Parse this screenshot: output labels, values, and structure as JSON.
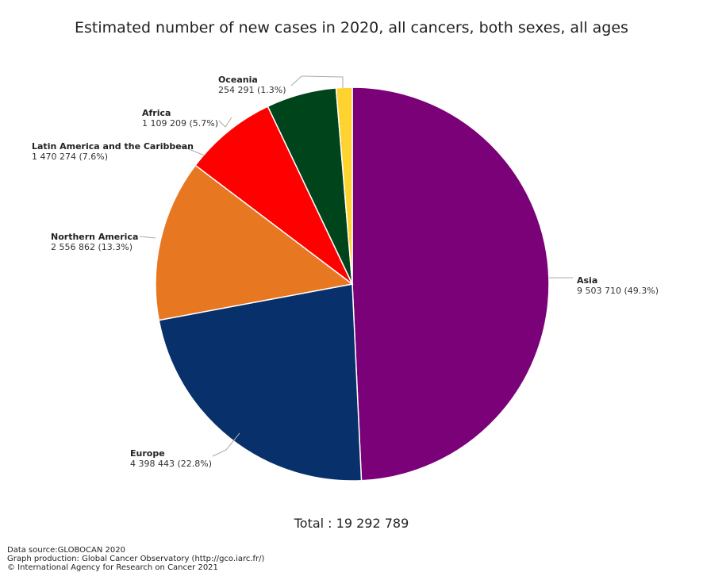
{
  "chart_data": {
    "type": "pie",
    "title": "Estimated number of new cases in 2020, all cancers, both sexes, all ages",
    "slices": [
      {
        "label": "Asia",
        "value": 9503710,
        "value_text": "9 503 710 (49.3%)",
        "color": "#7a0177"
      },
      {
        "label": "Europe",
        "value": 4398443,
        "value_text": "4 398 443 (22.8%)",
        "color": "#08306b"
      },
      {
        "label": "Northern America",
        "value": 2556862,
        "value_text": "2 556 862 (13.3%)",
        "color": "#e87722"
      },
      {
        "label": "Latin America and the Caribbean",
        "value": 1470274,
        "value_text": "1 470 274 (7.6%)",
        "color": "#ff0000"
      },
      {
        "label": "Africa",
        "value": 1109209,
        "value_text": "1 109 209 (5.7%)",
        "color": "#00441b"
      },
      {
        "label": "Oceania",
        "value": 254291,
        "value_text": "254 291 (1.3%)",
        "color": "#fed330"
      }
    ],
    "total_text": "Total : 19 292 789"
  },
  "credits": {
    "line1": "Data source:GLOBOCAN 2020",
    "line2": "Graph production: Global Cancer Observatory (http://gco.iarc.fr/)",
    "line3": "© International Agency for Research on Cancer 2021"
  }
}
